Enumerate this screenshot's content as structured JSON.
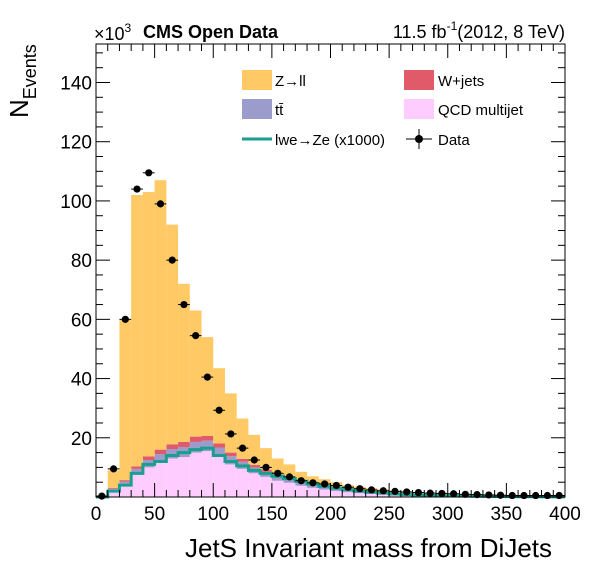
{
  "header": {
    "experiment": "CMS Open Data",
    "lumi": "11.5 fb",
    "lumi_sup": "-1",
    "conditions": "(2012, 8 TeV)",
    "exponent_prefix": "×10",
    "exponent_sup": "3"
  },
  "colors": {
    "zll": "#ffc966",
    "wjets": "#e05a6a",
    "ttbar": "#9c9ccc",
    "qcd": "#ffccff",
    "signal": "#1a9e8f",
    "data": "#000000"
  },
  "chart_data": {
    "type": "bar",
    "stacked": true,
    "xlabel": "JetS Invariant mass from DiJets",
    "ylabel": "N",
    "ylabel_sub": "Events",
    "xlim": [
      0,
      400
    ],
    "ylim": [
      0,
      153
    ],
    "y_scale_note": "×10^3",
    "x_ticks": [
      0,
      50,
      100,
      150,
      200,
      250,
      300,
      350,
      400
    ],
    "y_ticks": [
      20,
      40,
      60,
      80,
      100,
      120,
      140
    ],
    "bin_width": 10,
    "bins_low_edges": [
      0,
      10,
      20,
      30,
      40,
      50,
      60,
      70,
      80,
      90,
      100,
      110,
      120,
      130,
      140,
      150,
      160,
      170,
      180,
      190,
      200,
      210,
      220,
      230,
      240,
      250,
      260,
      270,
      280,
      290,
      300,
      310,
      320,
      330,
      340,
      350,
      360,
      370,
      380,
      390
    ],
    "series": [
      {
        "name": "QCD multijet",
        "key": "qcd",
        "values": [
          0.1,
          2.5,
          4.5,
          8,
          10,
          11.5,
          13,
          13.5,
          15,
          15.5,
          13.5,
          11,
          9.5,
          8,
          6.8,
          5.5,
          4.8,
          3.8,
          3.1,
          2.5,
          2,
          1.6,
          1.3,
          1.1,
          0.9,
          0.7,
          0.6,
          0.5,
          0.4,
          0.35,
          0.3,
          0.25,
          0.2,
          0.18,
          0.15,
          0.12,
          0.1,
          0.08,
          0.07,
          0.06
        ]
      },
      {
        "name": "tt̄",
        "key": "ttbar",
        "values": [
          0,
          0.3,
          0.7,
          1.5,
          2.5,
          3,
          3.2,
          3.4,
          3.6,
          3.5,
          3.2,
          2.8,
          2.4,
          2,
          1.7,
          1.5,
          1.2,
          1,
          0.8,
          0.65,
          0.5,
          0.4,
          0.32,
          0.25,
          0.2,
          0.16,
          0.13,
          0.1,
          0.08,
          0.06,
          0.05,
          0.04,
          0.03,
          0.02,
          0.02,
          0.02,
          0.01,
          0.01,
          0.01,
          0.01
        ]
      },
      {
        "name": "W+jets",
        "key": "wjets",
        "values": [
          0,
          0.3,
          0.5,
          0.8,
          1.2,
          1.5,
          1.6,
          1.7,
          1.8,
          1.6,
          1.4,
          1.2,
          1,
          0.8,
          0.7,
          0.6,
          0.5,
          0.4,
          0.35,
          0.3,
          0.25,
          0.2,
          0.15,
          0.12,
          0.1,
          0.08,
          0.07,
          0.06,
          0.05,
          0.04,
          0.03,
          0.03,
          0.02,
          0.02,
          0.02,
          0.01,
          0.01,
          0.01,
          0.01,
          0.01
        ]
      },
      {
        "name": "Z→ll",
        "key": "zll",
        "values": [
          0,
          5.9,
          54.3,
          91.7,
          89.3,
          91,
          74.2,
          53.4,
          42.6,
          33.4,
          25.4,
          20,
          13.6,
          10.2,
          7.3,
          5.4,
          4.5,
          3.3,
          2.75,
          2.55,
          2.25,
          1.8,
          1.73,
          1.53,
          1.3,
          1.06,
          0.7,
          0.64,
          0.57,
          0.55,
          0.52,
          0.48,
          0.45,
          0.38,
          0.31,
          0.35,
          0.38,
          0.4,
          0.41,
          0.42
        ]
      }
    ],
    "signal": {
      "name": "lwe→Ze (x1000)",
      "values": [
        0,
        2,
        4,
        8,
        11,
        12,
        14,
        15,
        16,
        16.5,
        14,
        12,
        10.5,
        9,
        8,
        7,
        6.2,
        5.3,
        4.4,
        3.6,
        3,
        2.5,
        2,
        1.6,
        1.3,
        1,
        0.8,
        0.65,
        0.5,
        0.4,
        0.35,
        0.3,
        0.25,
        0.2,
        0.16,
        0.13,
        0.1,
        0.08,
        0.06,
        0.05
      ]
    },
    "data": {
      "name": "Data",
      "x": [
        5,
        15,
        25,
        35,
        45,
        55,
        65,
        75,
        85,
        95,
        105,
        115,
        125,
        135,
        145,
        155,
        165,
        175,
        185,
        195,
        205,
        215,
        225,
        235,
        245,
        255,
        265,
        275,
        285,
        295,
        305,
        315,
        325,
        335,
        345,
        355,
        365,
        375,
        385,
        395
      ],
      "y": [
        0.3,
        9.5,
        60,
        104,
        109.5,
        99,
        80,
        65,
        54.5,
        40.5,
        29.3,
        21.3,
        16.5,
        12.5,
        10,
        8,
        6.8,
        5.5,
        4.8,
        4.4,
        3.9,
        3.3,
        2.8,
        2.4,
        2.1,
        1.9,
        1.7,
        1.5,
        1.3,
        1.2,
        1.1,
        0.9,
        0.8,
        0.7,
        0.6,
        0.5,
        0.5,
        0.5,
        0.5,
        0.5
      ]
    },
    "legend": {
      "placement": "top-right",
      "columns": 2
    }
  }
}
